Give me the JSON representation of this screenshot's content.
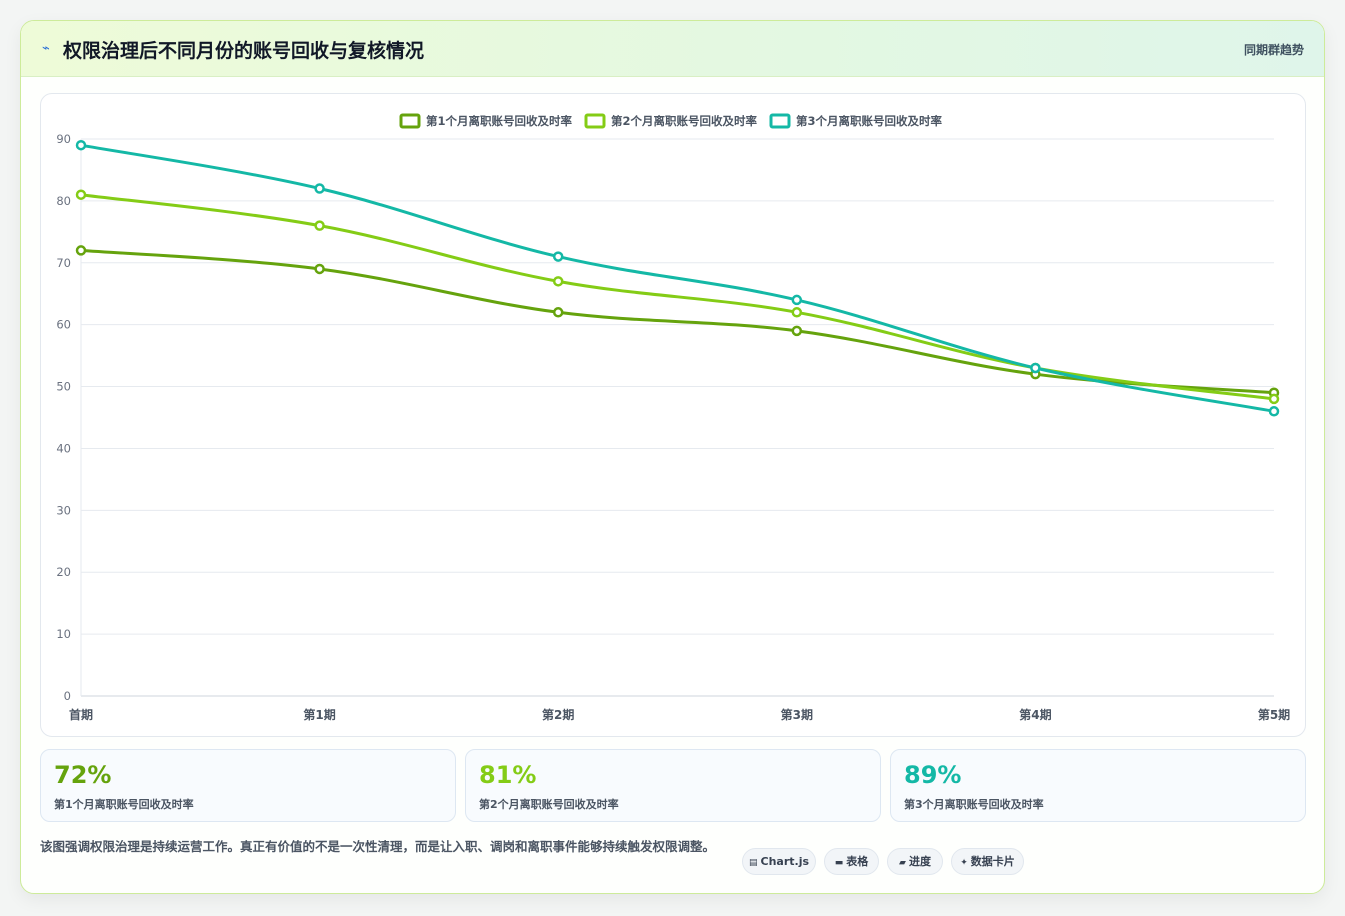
{
  "header": {
    "icon": "lightning-icon",
    "title": "权限治理后不同月份的账号回收与复核情况",
    "tag": "同期群趋势"
  },
  "chart_data": {
    "type": "line",
    "categories": [
      "首期",
      "第1期",
      "第2期",
      "第3期",
      "第4期",
      "第5期"
    ],
    "series": [
      {
        "name": "第1个月离职账号回收及时率",
        "color": "#65a30d",
        "values": [
          72,
          69,
          62,
          59,
          52,
          49
        ]
      },
      {
        "name": "第2个月离职账号回收及时率",
        "color": "#84cc16",
        "values": [
          81,
          76,
          67,
          62,
          53,
          48
        ]
      },
      {
        "name": "第3个月离职账号回收及时率",
        "color": "#14b8a6",
        "values": [
          89,
          82,
          71,
          64,
          53,
          46
        ]
      }
    ],
    "ylim": [
      0,
      90
    ],
    "yticks": [
      0,
      10,
      20,
      30,
      40,
      50,
      60,
      70,
      80,
      90
    ],
    "legend": "top-center",
    "grid": true
  },
  "stats": [
    {
      "value": "72%",
      "label": "第1个月离职账号回收及时率",
      "color": "#65a30d"
    },
    {
      "value": "81%",
      "label": "第2个月离职账号回收及时率",
      "color": "#84cc16"
    },
    {
      "value": "89%",
      "label": "第3个月离职账号回收及时率",
      "color": "#14b8a6"
    }
  ],
  "note": "该图强调权限治理是持续运营工作。真正有价值的不是一次性清理，而是让入职、调岗和离职事件能够持续触发权限调整。",
  "chips": [
    {
      "icon": "card-icon",
      "glyph": "▤",
      "label": "Chart.js"
    },
    {
      "icon": "table-icon",
      "glyph": "▬",
      "label": "表格"
    },
    {
      "icon": "progress-icon",
      "glyph": "▰",
      "label": "进度"
    },
    {
      "icon": "sparkle-icon",
      "glyph": "✦",
      "label": "数据卡片"
    }
  ]
}
